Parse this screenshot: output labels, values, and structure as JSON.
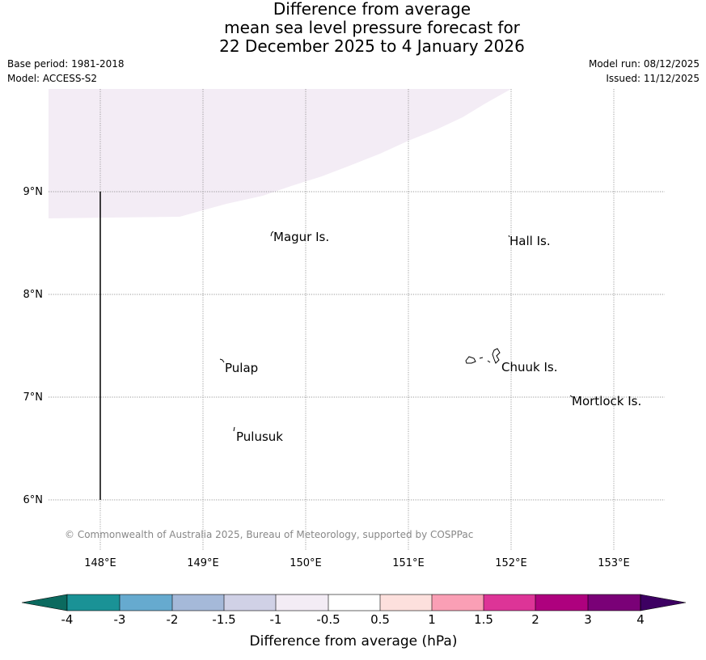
{
  "title": {
    "line1": "Difference from average",
    "line2": "mean sea level pressure forecast for",
    "line3": "22 December 2025 to 4 January 2026"
  },
  "meta": {
    "base_period": "Base period: 1981-2018",
    "model": "Model: ACCESS-S2",
    "model_run": "Model run: 08/12/2025",
    "issued": "Issued: 11/12/2025"
  },
  "map": {
    "lat_labels": [
      "9°N",
      "8°N",
      "7°N",
      "6°N"
    ],
    "lon_labels": [
      "148°E",
      "149°E",
      "150°E",
      "151°E",
      "152°E",
      "153°E"
    ],
    "places": [
      "Magur Is.",
      "Hall Is.",
      "Pulap",
      "Chuuk Is.",
      "Mortlock Is.",
      "Pulusuk"
    ],
    "shaded_category": "-1 to -0.5",
    "shade_color": "#f3ecf5",
    "copyright": "© Commonwealth of Australia 2025, Bureau of Meteorology, supported by COSPPac"
  },
  "colorbar": {
    "label": "Difference from average (hPa)",
    "ticks": [
      "-4",
      "-3",
      "-2",
      "-1.5",
      "-1",
      "-0.5",
      "0.5",
      "1",
      "1.5",
      "2",
      "3",
      "4"
    ],
    "under_color": "#0b6a5f",
    "over_color": "#3d0062",
    "colors": [
      "#1a9296",
      "#66aacf",
      "#a5b9d9",
      "#d0d1e6",
      "#f3ecf5",
      "#ffffff",
      "#fde0dd",
      "#fa9fb5",
      "#dd3497",
      "#ae017e",
      "#7a0177"
    ]
  }
}
